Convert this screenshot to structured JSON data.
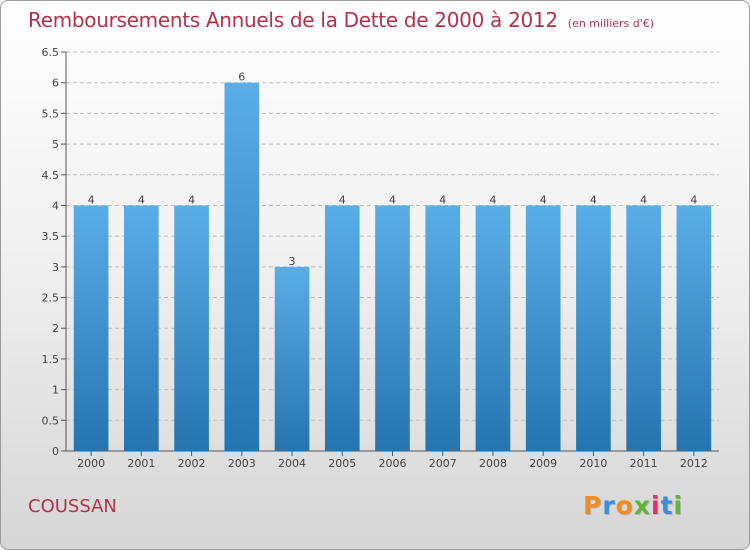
{
  "header": {
    "title": "Remboursements Annuels de la Dette de 2000 à 2012",
    "unit": "(en milliers d'€)"
  },
  "footer": {
    "commune": "COUSSAN",
    "logo_text": "Proxiti"
  },
  "colors": {
    "bar_top": "#5aaee8",
    "bar_bottom": "#2474b0",
    "title": "#b5304b",
    "grid": "#bdbdbd",
    "logo_letters": [
      "#f28c1e",
      "#3a8fd8",
      "#f28c1e",
      "#63b33a",
      "#d8356b",
      "#3a8fd8",
      "#63b33a"
    ]
  },
  "chart_data": {
    "type": "bar",
    "title": "Remboursements Annuels de la Dette de 2000 à 2012",
    "subtitle": "(en milliers d'€)",
    "categories": [
      "2000",
      "2001",
      "2002",
      "2003",
      "2004",
      "2005",
      "2006",
      "2007",
      "2008",
      "2009",
      "2010",
      "2011",
      "2012"
    ],
    "values": [
      4,
      4,
      4,
      6,
      3,
      4,
      4,
      4,
      4,
      4,
      4,
      4,
      4
    ],
    "data_labels": [
      "4",
      "4",
      "4",
      "6",
      "3",
      "4",
      "4",
      "4",
      "4",
      "4",
      "4",
      "4",
      "4"
    ],
    "ylim": [
      0,
      6.5
    ],
    "yticks": [
      0,
      0.5,
      1,
      1.5,
      2,
      2.5,
      3,
      3.5,
      4,
      4.5,
      5,
      5.5,
      6,
      6.5
    ],
    "ytick_labels": [
      "0",
      "0.5",
      "1",
      "1.5",
      "2",
      "2.5",
      "3",
      "3.5",
      "4",
      "4.5",
      "5",
      "5.5",
      "6",
      "6.5"
    ],
    "xlabel": "",
    "ylabel": "",
    "grid": true
  }
}
